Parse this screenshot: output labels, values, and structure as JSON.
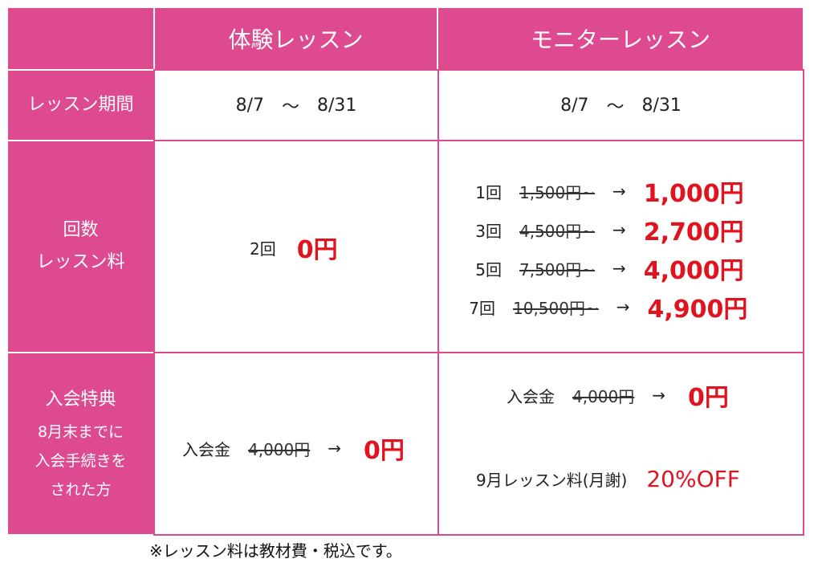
{
  "header": {
    "col1": "体験レッスン",
    "col2": "モニターレッスン"
  },
  "period": {
    "label": "レッスン期間",
    "trial": {
      "start": "8/7",
      "tilde": "～",
      "end": "8/31"
    },
    "monitor": {
      "start": "8/7",
      "tilde": "～",
      "end": "8/31"
    }
  },
  "fee": {
    "label_line1": "回数",
    "label_line2": "レッスン料",
    "trial": {
      "times": "2回",
      "price": "0円"
    },
    "monitor": [
      {
        "times": "1回",
        "original": "1,500円~",
        "arrow": "→",
        "price": "1,000円"
      },
      {
        "times": "3回",
        "original": "4,500円~",
        "arrow": "→",
        "price": "2,700円"
      },
      {
        "times": "5回",
        "original": "7,500円~",
        "arrow": "→",
        "price": "4,000円"
      },
      {
        "times": "7回",
        "original": "10,500円~",
        "arrow": "→",
        "price": "4,900円"
      }
    ]
  },
  "benefit": {
    "label_main": "入会特典",
    "label_sub1": "8月末までに",
    "label_sub2": "入会手続きを",
    "label_sub3": "された方",
    "trial": {
      "name": "入会金",
      "original": "4,000円",
      "arrow": "→",
      "price": "0円"
    },
    "monitor_entry": {
      "name": "入会金",
      "original": "4,000円",
      "arrow": "→",
      "price": "0円"
    },
    "monitor_discount": {
      "name": "9月レッスン料(月謝)",
      "value": "20%OFF"
    }
  },
  "note": "※レッスン料は教材費・税込です。",
  "colors": {
    "accent": "#de4a8f",
    "price": "#e0141e"
  }
}
